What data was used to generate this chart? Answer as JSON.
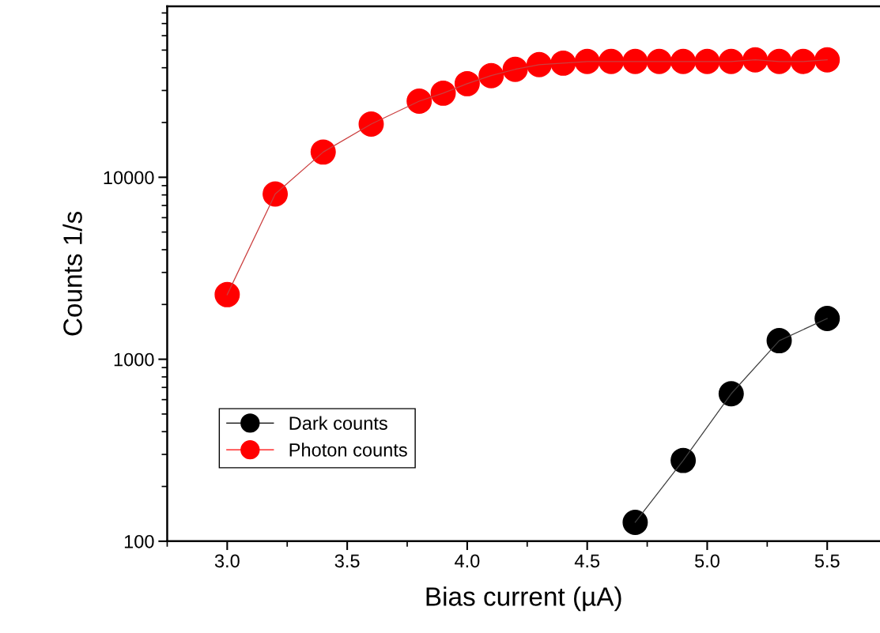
{
  "chart_data": {
    "type": "line",
    "xlabel": "Bias current (µA)",
    "ylabel": "Counts 1/s",
    "log": "y",
    "xlim": [
      2.75,
      5.72
    ],
    "xticks": [
      {
        "value": 3.0,
        "label": "3.0"
      },
      {
        "value": 3.5,
        "label": "3.5"
      },
      {
        "value": 4.0,
        "label": "4.0"
      },
      {
        "value": 4.5,
        "label": "4.5"
      },
      {
        "value": 5.0,
        "label": "5.0"
      },
      {
        "value": 5.5,
        "label": "5.5"
      }
    ],
    "ylim": [
      100,
      87000
    ],
    "yticks": [
      100,
      1000,
      10000
    ],
    "marker": "circle",
    "line_style": "solid",
    "grid": false,
    "legend": "left",
    "series": [
      {
        "name": "Dark counts",
        "color": "#000000",
        "x": [
          4.7,
          4.9,
          5.1,
          5.3,
          5.5
        ],
        "values": [
          127,
          278,
          646,
          1265,
          1675
        ]
      },
      {
        "name": "Photon counts",
        "color": "#ff0000",
        "x": [
          3.0,
          3.2,
          3.4,
          3.6,
          3.8,
          3.9,
          4.0,
          4.1,
          4.2,
          4.3,
          4.4,
          4.5,
          4.6,
          4.7,
          4.8,
          4.9,
          5.0,
          5.1,
          5.2,
          5.3,
          5.4,
          5.5
        ],
        "values": [
          2265,
          8090,
          13770,
          19600,
          26200,
          29000,
          32700,
          36200,
          39200,
          41600,
          42400,
          43300,
          43300,
          43300,
          43300,
          43300,
          43300,
          43300,
          44200,
          43300,
          43300,
          44200
        ]
      }
    ]
  }
}
